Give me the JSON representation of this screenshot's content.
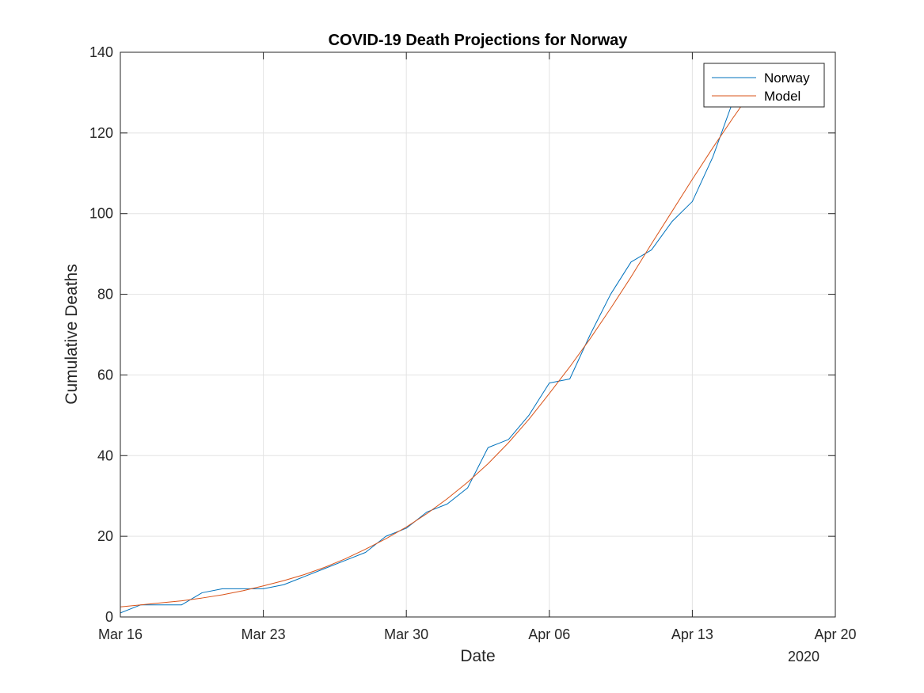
{
  "chart_data": {
    "type": "line",
    "title": "COVID-19 Death Projections for Norway",
    "xlabel": "Date",
    "ylabel": "Cumulative Deaths",
    "x_year_label": "2020",
    "xlim": [
      "2020-03-16",
      "2020-04-20"
    ],
    "ylim": [
      0,
      140
    ],
    "x_ticks": [
      {
        "date": "2020-03-16",
        "label": "Mar 16"
      },
      {
        "date": "2020-03-23",
        "label": "Mar 23"
      },
      {
        "date": "2020-03-30",
        "label": "Mar 30"
      },
      {
        "date": "2020-04-06",
        "label": "Apr 06"
      },
      {
        "date": "2020-04-13",
        "label": "Apr 13"
      },
      {
        "date": "2020-04-20",
        "label": "Apr 20"
      }
    ],
    "y_ticks": [
      0,
      20,
      40,
      60,
      80,
      100,
      120,
      140
    ],
    "grid": true,
    "legend_position": "top-right",
    "series": [
      {
        "name": "Norway",
        "color": "#0072BD",
        "points": [
          {
            "x": "2020-03-16",
            "y": 1
          },
          {
            "x": "2020-03-17",
            "y": 3
          },
          {
            "x": "2020-03-18",
            "y": 3
          },
          {
            "x": "2020-03-19",
            "y": 3
          },
          {
            "x": "2020-03-20",
            "y": 6
          },
          {
            "x": "2020-03-21",
            "y": 7
          },
          {
            "x": "2020-03-22",
            "y": 7
          },
          {
            "x": "2020-03-23",
            "y": 7
          },
          {
            "x": "2020-03-24",
            "y": 8
          },
          {
            "x": "2020-03-25",
            "y": 10
          },
          {
            "x": "2020-03-26",
            "y": 12
          },
          {
            "x": "2020-03-27",
            "y": 14
          },
          {
            "x": "2020-03-28",
            "y": 16
          },
          {
            "x": "2020-03-29",
            "y": 20
          },
          {
            "x": "2020-03-30",
            "y": 22
          },
          {
            "x": "2020-03-31",
            "y": 26
          },
          {
            "x": "2020-04-01",
            "y": 28
          },
          {
            "x": "2020-04-02",
            "y": 32
          },
          {
            "x": "2020-04-03",
            "y": 42
          },
          {
            "x": "2020-04-04",
            "y": 44
          },
          {
            "x": "2020-04-05",
            "y": 50
          },
          {
            "x": "2020-04-06",
            "y": 58
          },
          {
            "x": "2020-04-07",
            "y": 59
          },
          {
            "x": "2020-04-08",
            "y": 70
          },
          {
            "x": "2020-04-09",
            "y": 80
          },
          {
            "x": "2020-04-10",
            "y": 88
          },
          {
            "x": "2020-04-11",
            "y": 91
          },
          {
            "x": "2020-04-12",
            "y": 98
          },
          {
            "x": "2020-04-13",
            "y": 103
          },
          {
            "x": "2020-04-14",
            "y": 114
          },
          {
            "x": "2020-04-15",
            "y": 128
          },
          {
            "x": "2020-04-16",
            "y": 134
          }
        ]
      },
      {
        "name": "Model",
        "color": "#D95319",
        "points": [
          {
            "x": "2020-03-16",
            "y": 2.5
          },
          {
            "x": "2020-03-17",
            "y": 3
          },
          {
            "x": "2020-03-18",
            "y": 3.5
          },
          {
            "x": "2020-03-19",
            "y": 4
          },
          {
            "x": "2020-03-20",
            "y": 4.7
          },
          {
            "x": "2020-03-21",
            "y": 5.5
          },
          {
            "x": "2020-03-22",
            "y": 6.5
          },
          {
            "x": "2020-03-23",
            "y": 7.7
          },
          {
            "x": "2020-03-24",
            "y": 9
          },
          {
            "x": "2020-03-25",
            "y": 10.5
          },
          {
            "x": "2020-03-26",
            "y": 12.3
          },
          {
            "x": "2020-03-27",
            "y": 14.4
          },
          {
            "x": "2020-03-28",
            "y": 16.8
          },
          {
            "x": "2020-03-29",
            "y": 19.4
          },
          {
            "x": "2020-03-30",
            "y": 22.3
          },
          {
            "x": "2020-03-31",
            "y": 25.6
          },
          {
            "x": "2020-04-01",
            "y": 29.3
          },
          {
            "x": "2020-04-02",
            "y": 33.4
          },
          {
            "x": "2020-04-03",
            "y": 38
          },
          {
            "x": "2020-04-04",
            "y": 43.2
          },
          {
            "x": "2020-04-05",
            "y": 49
          },
          {
            "x": "2020-04-06",
            "y": 55.4
          },
          {
            "x": "2020-04-07",
            "y": 62
          },
          {
            "x": "2020-04-08",
            "y": 69
          },
          {
            "x": "2020-04-09",
            "y": 76.5
          },
          {
            "x": "2020-04-10",
            "y": 84.3
          },
          {
            "x": "2020-04-11",
            "y": 92.5
          },
          {
            "x": "2020-04-12",
            "y": 100.5
          },
          {
            "x": "2020-04-13",
            "y": 108.5
          },
          {
            "x": "2020-04-14",
            "y": 116.3
          },
          {
            "x": "2020-04-15",
            "y": 123.8
          },
          {
            "x": "2020-04-16",
            "y": 131
          }
        ]
      }
    ]
  }
}
